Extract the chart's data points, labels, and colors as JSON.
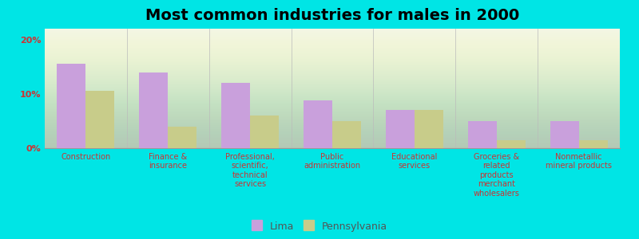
{
  "title": "Most common industries for males in 2000",
  "categories": [
    "Construction",
    "Finance &\ninsurance",
    "Professional,\nscientific,\ntechnical\nservices",
    "Public\nadministration",
    "Educational\nservices",
    "Groceries &\nrelated\nproducts\nmerchant\nwholesalers",
    "Nonmetallic\nmineral products"
  ],
  "lima_values": [
    15.5,
    14.0,
    12.0,
    8.8,
    7.0,
    5.0,
    5.0
  ],
  "pennsylvania_values": [
    10.5,
    4.0,
    6.0,
    5.0,
    7.0,
    1.5,
    1.5
  ],
  "lima_color": "#c9a0dc",
  "pennsylvania_color": "#c8cc8a",
  "background_color": "#00e5e5",
  "ylim": [
    0,
    22
  ],
  "yticks": [
    0,
    10,
    20
  ],
  "ytick_labels": [
    "0%",
    "10%",
    "20%"
  ],
  "legend_lima": "Lima",
  "legend_pennsylvania": "Pennsylvania",
  "title_fontsize": 14,
  "label_fontsize": 7,
  "tick_fontsize": 8,
  "legend_fontsize": 9
}
